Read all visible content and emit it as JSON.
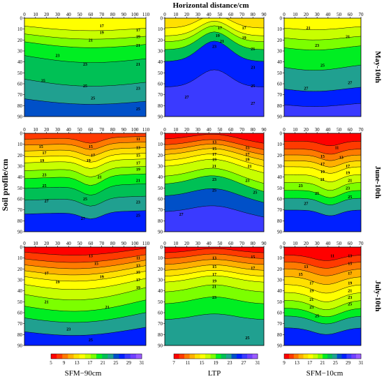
{
  "figure": {
    "top_label": "Horizontal distance/cm",
    "left_label": "Soil profile/cm",
    "row_labels": [
      "May-10th",
      "June-10th",
      "July-10th"
    ],
    "column_labels": [
      "SFM−90cm",
      "LTP",
      "SFM−10cm"
    ]
  },
  "colorbars": [
    {
      "ticks": [
        "5",
        "9",
        "13",
        "17",
        "21",
        "25",
        "29",
        "31"
      ]
    },
    {
      "ticks": [
        "7",
        "11",
        "15",
        "19",
        "23",
        "27",
        "31"
      ]
    },
    {
      "ticks": [
        "9",
        "13",
        "17",
        "21",
        "25",
        "29",
        "31"
      ]
    }
  ],
  "colors": [
    "#ff0000",
    "#ff3a00",
    "#ff7a00",
    "#ffb000",
    "#ffe000",
    "#ffff00",
    "#c8ff00",
    "#7cff00",
    "#00ee22",
    "#00c055",
    "#20a090",
    "#0050c8",
    "#0020ff",
    "#3a3aff",
    "#7040ff",
    "#9a5cff",
    "#b07cff"
  ],
  "chart_data": [
    {
      "type": "heatmap",
      "panel": "May-10th SFM−90cm",
      "x_ticks": [
        "0",
        "10",
        "20",
        "30",
        "40",
        "50",
        "60",
        "70",
        "80",
        "90",
        "100",
        "110"
      ],
      "y_ticks": [
        "0",
        "10",
        "20",
        "30",
        "40",
        "50",
        "60",
        "70",
        "80",
        "90"
      ],
      "xlim": [
        0,
        110
      ],
      "ylim": [
        90,
        0
      ],
      "contour_labels": [
        {
          "v": "17",
          "x": 70,
          "y": 7
        },
        {
          "v": "17",
          "x": 103,
          "y": 11
        },
        {
          "v": "19",
          "x": 70,
          "y": 13
        },
        {
          "v": "19",
          "x": 103,
          "y": 17
        },
        {
          "v": "21",
          "x": 60,
          "y": 20
        },
        {
          "v": "21",
          "x": 103,
          "y": 25
        },
        {
          "v": "23",
          "x": 30,
          "y": 34
        },
        {
          "v": "23",
          "x": 55,
          "y": 42
        },
        {
          "v": "21",
          "x": 103,
          "y": 42
        },
        {
          "v": "25",
          "x": 17,
          "y": 57
        },
        {
          "v": "25",
          "x": 55,
          "y": 62
        },
        {
          "v": "23",
          "x": 103,
          "y": 64
        },
        {
          "v": "25",
          "x": 62,
          "y": 73
        },
        {
          "v": "25",
          "x": 103,
          "y": 83
        }
      ]
    },
    {
      "type": "heatmap",
      "panel": "May-10th LTP",
      "x_ticks": [
        "0",
        "10",
        "20",
        "30",
        "40",
        "50",
        "60",
        "70",
        "80",
        "90"
      ],
      "y_ticks": [
        "0",
        "10",
        "20",
        "30",
        "40",
        "50",
        "60",
        "70",
        "80",
        "90"
      ],
      "xlim": [
        0,
        90
      ],
      "ylim": [
        90,
        0
      ],
      "contour_labels": [
        {
          "v": "17",
          "x": 50,
          "y": 9
        },
        {
          "v": "17",
          "x": 72,
          "y": 9
        },
        {
          "v": "19",
          "x": 48,
          "y": 16
        },
        {
          "v": "19",
          "x": 72,
          "y": 18
        },
        {
          "v": "21",
          "x": 52,
          "y": 21
        },
        {
          "v": "21",
          "x": 80,
          "y": 28
        },
        {
          "v": "23",
          "x": 45,
          "y": 26
        },
        {
          "v": "23",
          "x": 80,
          "y": 45
        },
        {
          "v": "25",
          "x": 80,
          "y": 62
        },
        {
          "v": "27",
          "x": 20,
          "y": 72
        },
        {
          "v": "27",
          "x": 80,
          "y": 78
        }
      ]
    },
    {
      "type": "heatmap",
      "panel": "May-10th SFM−10cm",
      "x_ticks": [
        "0",
        "10",
        "20",
        "30",
        "40",
        "50",
        "60",
        "70"
      ],
      "y_ticks": [
        "0",
        "10",
        "20",
        "30",
        "40",
        "50",
        "60",
        "70",
        "80",
        "90"
      ],
      "xlim": [
        0,
        70
      ],
      "ylim": [
        90,
        0
      ],
      "contour_labels": [
        {
          "v": "21",
          "x": 22,
          "y": 9
        },
        {
          "v": "21",
          "x": 58,
          "y": 17
        },
        {
          "v": "23",
          "x": 30,
          "y": 25
        },
        {
          "v": "25",
          "x": 35,
          "y": 43
        },
        {
          "v": "27",
          "x": 20,
          "y": 64
        },
        {
          "v": "27",
          "x": 60,
          "y": 59
        }
      ]
    },
    {
      "type": "heatmap",
      "panel": "June-10th SFM−90cm",
      "x_ticks": [
        "0",
        "10",
        "20",
        "30",
        "40",
        "50",
        "60",
        "70",
        "80",
        "90",
        "100",
        "110"
      ],
      "y_ticks": [
        "0",
        "10",
        "20",
        "30",
        "40",
        "50",
        "60",
        "70",
        "80",
        "90"
      ],
      "xlim": [
        0,
        110
      ],
      "ylim": [
        90,
        0
      ],
      "contour_labels": [
        {
          "v": "15",
          "x": 15,
          "y": 12
        },
        {
          "v": "17",
          "x": 18,
          "y": 18
        },
        {
          "v": "19",
          "x": 16,
          "y": 25
        },
        {
          "v": "23",
          "x": 18,
          "y": 38
        },
        {
          "v": "25",
          "x": 18,
          "y": 48
        },
        {
          "v": "27",
          "x": 20,
          "y": 62
        },
        {
          "v": "15",
          "x": 60,
          "y": 12
        },
        {
          "v": "17",
          "x": 62,
          "y": 20
        },
        {
          "v": "19",
          "x": 58,
          "y": 25
        },
        {
          "v": "21",
          "x": 68,
          "y": 40
        },
        {
          "v": "21",
          "x": 103,
          "y": 43
        },
        {
          "v": "23",
          "x": 103,
          "y": 63
        },
        {
          "v": "25",
          "x": 103,
          "y": 75
        },
        {
          "v": "27",
          "x": 53,
          "y": 78
        },
        {
          "v": "25",
          "x": 55,
          "y": 60
        },
        {
          "v": "11",
          "x": 103,
          "y": 5
        },
        {
          "v": "13",
          "x": 103,
          "y": 13
        },
        {
          "v": "15",
          "x": 103,
          "y": 20
        },
        {
          "v": "17",
          "x": 103,
          "y": 27
        },
        {
          "v": "19",
          "x": 103,
          "y": 33
        }
      ]
    },
    {
      "type": "heatmap",
      "panel": "June-10th LTP",
      "x_ticks": [
        "0",
        "10",
        "20",
        "30",
        "40",
        "50",
        "60",
        "70",
        "80",
        "90"
      ],
      "y_ticks": [
        "0",
        "10",
        "20",
        "30",
        "40",
        "50",
        "60",
        "70",
        "80",
        "90"
      ],
      "xlim": [
        0,
        90
      ],
      "ylim": [
        90,
        0
      ],
      "contour_labels": [
        {
          "v": "13",
          "x": 45,
          "y": 8
        },
        {
          "v": "15",
          "x": 45,
          "y": 14
        },
        {
          "v": "17",
          "x": 45,
          "y": 19
        },
        {
          "v": "19",
          "x": 45,
          "y": 24
        },
        {
          "v": "21",
          "x": 45,
          "y": 30
        },
        {
          "v": "23",
          "x": 45,
          "y": 42
        },
        {
          "v": "25",
          "x": 45,
          "y": 52
        },
        {
          "v": "15",
          "x": 75,
          "y": 13
        },
        {
          "v": "17",
          "x": 75,
          "y": 19
        },
        {
          "v": "19",
          "x": 75,
          "y": 24
        },
        {
          "v": "21",
          "x": 77,
          "y": 30
        },
        {
          "v": "23",
          "x": 75,
          "y": 43
        },
        {
          "v": "25",
          "x": 82,
          "y": 54
        },
        {
          "v": "27",
          "x": 15,
          "y": 74
        }
      ]
    },
    {
      "type": "heatmap",
      "panel": "June-10th SFM−10cm",
      "x_ticks": [
        "0",
        "10",
        "20",
        "30",
        "40",
        "50",
        "60",
        "70"
      ],
      "y_ticks": [
        "0",
        "10",
        "20",
        "30",
        "40",
        "50",
        "60",
        "70",
        "80",
        "90"
      ],
      "xlim": [
        0,
        70
      ],
      "ylim": [
        90,
        0
      ],
      "contour_labels": [
        {
          "v": "11",
          "x": 48,
          "y": 13
        },
        {
          "v": "13",
          "x": 52,
          "y": 22
        },
        {
          "v": "15",
          "x": 35,
          "y": 21
        },
        {
          "v": "17",
          "x": 35,
          "y": 28
        },
        {
          "v": "19",
          "x": 35,
          "y": 35
        },
        {
          "v": "21",
          "x": 35,
          "y": 42
        },
        {
          "v": "23",
          "x": 15,
          "y": 48
        },
        {
          "v": "25",
          "x": 30,
          "y": 55
        },
        {
          "v": "27",
          "x": 20,
          "y": 64
        },
        {
          "v": "17",
          "x": 58,
          "y": 30
        },
        {
          "v": "19",
          "x": 58,
          "y": 36
        },
        {
          "v": "21",
          "x": 60,
          "y": 43
        },
        {
          "v": "23",
          "x": 58,
          "y": 50
        },
        {
          "v": "25",
          "x": 60,
          "y": 58
        }
      ]
    },
    {
      "type": "heatmap",
      "panel": "July-10th SFM−90cm",
      "x_ticks": [
        "0",
        "10",
        "20",
        "30",
        "40",
        "50",
        "60",
        "70",
        "80",
        "90",
        "100",
        "110"
      ],
      "y_ticks": [
        "0",
        "10",
        "20",
        "30",
        "40",
        "50",
        "60",
        "70",
        "80",
        "90"
      ],
      "xlim": [
        0,
        110
      ],
      "ylim": [
        90,
        0
      ],
      "contour_labels": [
        {
          "v": "13",
          "x": 60,
          "y": 8
        },
        {
          "v": "15",
          "x": 65,
          "y": 15
        },
        {
          "v": "17",
          "x": 20,
          "y": 24
        },
        {
          "v": "19",
          "x": 30,
          "y": 32
        },
        {
          "v": "19",
          "x": 70,
          "y": 27
        },
        {
          "v": "21",
          "x": 20,
          "y": 50
        },
        {
          "v": "21",
          "x": 75,
          "y": 55
        },
        {
          "v": "11",
          "x": 103,
          "y": 10
        },
        {
          "v": "13",
          "x": 103,
          "y": 17
        },
        {
          "v": "15",
          "x": 103,
          "y": 23
        },
        {
          "v": "17",
          "x": 103,
          "y": 30
        },
        {
          "v": "19",
          "x": 103,
          "y": 37
        },
        {
          "v": "23",
          "x": 40,
          "y": 75
        },
        {
          "v": "25",
          "x": 60,
          "y": 85
        }
      ]
    },
    {
      "type": "heatmap",
      "panel": "July-10th LTP",
      "x_ticks": [
        "0",
        "10",
        "20",
        "30",
        "40",
        "50",
        "60",
        "70",
        "80",
        "90"
      ],
      "y_ticks": [
        "0",
        "10",
        "20",
        "30",
        "40",
        "50",
        "60",
        "70",
        "80",
        "90"
      ],
      "xlim": [
        0,
        90
      ],
      "ylim": [
        90,
        0
      ],
      "contour_labels": [
        {
          "v": "13",
          "x": 45,
          "y": 10
        },
        {
          "v": "15",
          "x": 45,
          "y": 18
        },
        {
          "v": "17",
          "x": 45,
          "y": 25
        },
        {
          "v": "19",
          "x": 45,
          "y": 31
        },
        {
          "v": "21",
          "x": 45,
          "y": 36
        },
        {
          "v": "23",
          "x": 45,
          "y": 46
        },
        {
          "v": "25",
          "x": 75,
          "y": 83
        },
        {
          "v": "17",
          "x": 80,
          "y": 19
        },
        {
          "v": "15",
          "x": 80,
          "y": 9
        }
      ]
    },
    {
      "type": "heatmap",
      "panel": "July-10th SFM−10cm",
      "x_ticks": [
        "0",
        "10",
        "20",
        "30",
        "40",
        "50",
        "60",
        "70"
      ],
      "y_ticks": [
        "0",
        "10",
        "20",
        "30",
        "40",
        "50",
        "60",
        "70",
        "80",
        "90"
      ],
      "xlim": [
        0,
        70
      ],
      "ylim": [
        90,
        0
      ],
      "contour_labels": [
        {
          "v": "11",
          "x": 44,
          "y": 8
        },
        {
          "v": "13",
          "x": 20,
          "y": 18
        },
        {
          "v": "15",
          "x": 15,
          "y": 25
        },
        {
          "v": "17",
          "x": 25,
          "y": 33
        },
        {
          "v": "19",
          "x": 25,
          "y": 40
        },
        {
          "v": "21",
          "x": 25,
          "y": 48
        },
        {
          "v": "23",
          "x": 25,
          "y": 55
        },
        {
          "v": "25",
          "x": 30,
          "y": 63
        },
        {
          "v": "13",
          "x": 60,
          "y": 8
        },
        {
          "v": "15",
          "x": 60,
          "y": 15
        },
        {
          "v": "17",
          "x": 60,
          "y": 24
        },
        {
          "v": "19",
          "x": 60,
          "y": 33
        },
        {
          "v": "21",
          "x": 60,
          "y": 40
        },
        {
          "v": "23",
          "x": 60,
          "y": 46
        },
        {
          "v": "25",
          "x": 60,
          "y": 52
        }
      ]
    }
  ]
}
